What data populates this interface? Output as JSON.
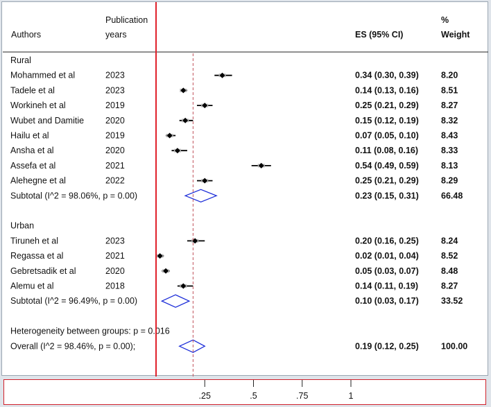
{
  "headers": {
    "authors": "Authors",
    "pub_line1": "Publication",
    "pub_line2": "years",
    "es": "ES (95% CI)",
    "weight_line1": "%",
    "weight_line2": "Weight"
  },
  "chart_data": {
    "type": "forest",
    "x_ticks": [
      {
        "value": 0.25,
        "label": ".25"
      },
      {
        "value": 0.5,
        "label": ".5"
      },
      {
        "value": 0.75,
        "label": ".75"
      },
      {
        "value": 1,
        "label": "1"
      }
    ],
    "null_line": 0,
    "overall_line": 0.19,
    "rows": [
      {
        "kind": "group",
        "label": "Rural"
      },
      {
        "kind": "study",
        "author": "Mohammed et al",
        "year": "2023",
        "es": 0.34,
        "lo": 0.3,
        "hi": 0.39,
        "es_text": "0.34 (0.30, 0.39)",
        "weight": "8.20"
      },
      {
        "kind": "study",
        "author": "Tadele et al",
        "year": "2023",
        "es": 0.14,
        "lo": 0.13,
        "hi": 0.16,
        "es_text": "0.14 (0.13, 0.16)",
        "weight": "8.51"
      },
      {
        "kind": "study",
        "author": "Workineh et al",
        "year": "2019",
        "es": 0.25,
        "lo": 0.21,
        "hi": 0.29,
        "es_text": "0.25 (0.21, 0.29)",
        "weight": "8.27"
      },
      {
        "kind": "study",
        "author": "Wubet and Damitie",
        "year": "2020",
        "es": 0.15,
        "lo": 0.12,
        "hi": 0.19,
        "es_text": "0.15 (0.12, 0.19)",
        "weight": "8.32"
      },
      {
        "kind": "study",
        "author": "Hailu et al",
        "year": "2019",
        "es": 0.07,
        "lo": 0.05,
        "hi": 0.1,
        "es_text": "0.07 (0.05, 0.10)",
        "weight": "8.43"
      },
      {
        "kind": "study",
        "author": "Ansha et al",
        "year": "2020",
        "es": 0.11,
        "lo": 0.08,
        "hi": 0.16,
        "es_text": "0.11 (0.08, 0.16)",
        "weight": "8.33"
      },
      {
        "kind": "study",
        "author": "Assefa et al",
        "year": "2021",
        "es": 0.54,
        "lo": 0.49,
        "hi": 0.59,
        "es_text": "0.54 (0.49, 0.59)",
        "weight": "8.13"
      },
      {
        "kind": "study",
        "author": "Alehegne et al",
        "year": "2022",
        "es": 0.25,
        "lo": 0.21,
        "hi": 0.29,
        "es_text": "0.25 (0.21, 0.29)",
        "weight": "8.29"
      },
      {
        "kind": "subtotal",
        "label": "Subtotal  (I^2 = 98.06%, p = 0.00)",
        "es": 0.23,
        "lo": 0.15,
        "hi": 0.31,
        "es_text": "0.23 (0.15, 0.31)",
        "weight": "66.48"
      },
      {
        "kind": "blank"
      },
      {
        "kind": "group",
        "label": "Urban"
      },
      {
        "kind": "study",
        "author": "Tiruneh et al",
        "year": "2023",
        "es": 0.2,
        "lo": 0.16,
        "hi": 0.25,
        "es_text": "0.20 (0.16, 0.25)",
        "weight": "8.24"
      },
      {
        "kind": "study",
        "author": "Regassa et al",
        "year": "2021",
        "es": 0.02,
        "lo": 0.01,
        "hi": 0.04,
        "es_text": "0.02 (0.01, 0.04)",
        "weight": "8.52"
      },
      {
        "kind": "study",
        "author": "Gebretsadik et al",
        "year": "2020",
        "es": 0.05,
        "lo": 0.03,
        "hi": 0.07,
        "es_text": "0.05 (0.03, 0.07)",
        "weight": "8.48"
      },
      {
        "kind": "study",
        "author": "Alemu et al",
        "year": "2018",
        "es": 0.14,
        "lo": 0.11,
        "hi": 0.19,
        "es_text": "0.14 (0.11, 0.19)",
        "weight": "8.27"
      },
      {
        "kind": "subtotal",
        "label": "Subtotal  (I^2 = 96.49%, p = 0.00)",
        "es": 0.1,
        "lo": 0.03,
        "hi": 0.17,
        "es_text": "0.10 (0.03, 0.17)",
        "weight": "33.52"
      },
      {
        "kind": "blank"
      },
      {
        "kind": "note",
        "label": "Heterogeneity between groups: p = 0.016"
      },
      {
        "kind": "subtotal",
        "label": "Overall  (I^2 = 98.46%, p = 0.00);",
        "es": 0.19,
        "lo": 0.12,
        "hi": 0.25,
        "es_text": "0.19 (0.12, 0.25)",
        "weight": "100.00"
      }
    ]
  },
  "colors": {
    "null_line": "#e0202a",
    "overall_line": "#c0505a",
    "diamond": "#1a2bd8",
    "marker": "#000000",
    "background": "#ffffff",
    "page": "#dfe4ea"
  }
}
